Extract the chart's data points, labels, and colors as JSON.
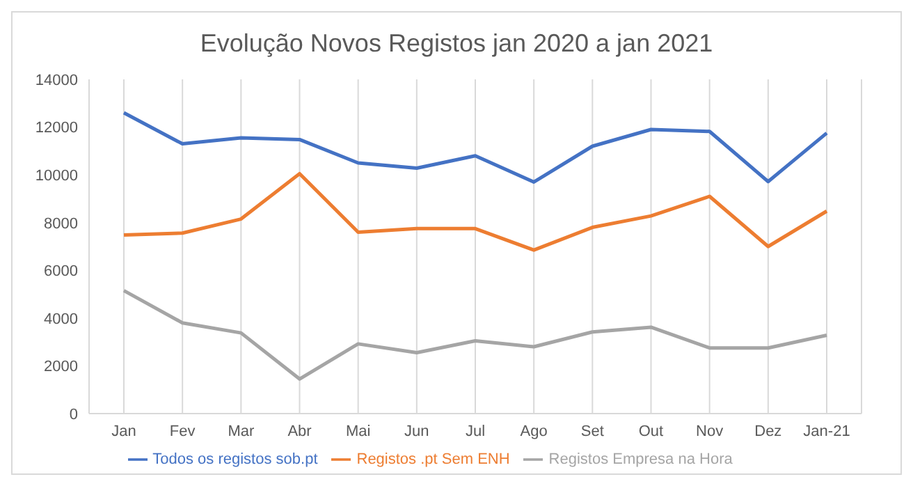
{
  "chart_data": {
    "type": "line",
    "title": "Evolução  Novos Registos jan 2020 a jan 2021",
    "categories": [
      "Jan",
      "Fev",
      "Mar",
      "Abr",
      "Mai",
      "Jun",
      "Jul",
      "Ago",
      "Set",
      "Out",
      "Nov",
      "Dez",
      "Jan-21"
    ],
    "series": [
      {
        "name": "Todos os registos sob.pt",
        "color": "#4472c4",
        "values": [
          12600,
          11300,
          11550,
          11480,
          10500,
          10280,
          10800,
          9700,
          11200,
          11900,
          11820,
          9720,
          11750
        ]
      },
      {
        "name": "Registos .pt Sem ENH",
        "color": "#ed7d31",
        "values": [
          7480,
          7560,
          8150,
          10050,
          7600,
          7750,
          7750,
          6850,
          7800,
          8280,
          9100,
          7000,
          8480
        ]
      },
      {
        "name": "Registos Empresa na Hora",
        "color": "#a5a5a5",
        "values": [
          5150,
          3800,
          3380,
          1450,
          2920,
          2550,
          3050,
          2800,
          3420,
          3620,
          2750,
          2750,
          3280
        ]
      }
    ],
    "ylim": [
      0,
      14000
    ],
    "yticks": [
      0,
      2000,
      4000,
      6000,
      8000,
      10000,
      12000,
      14000
    ],
    "grid": "x",
    "legend": "bottom",
    "marker": "none",
    "line_style": "solid"
  }
}
